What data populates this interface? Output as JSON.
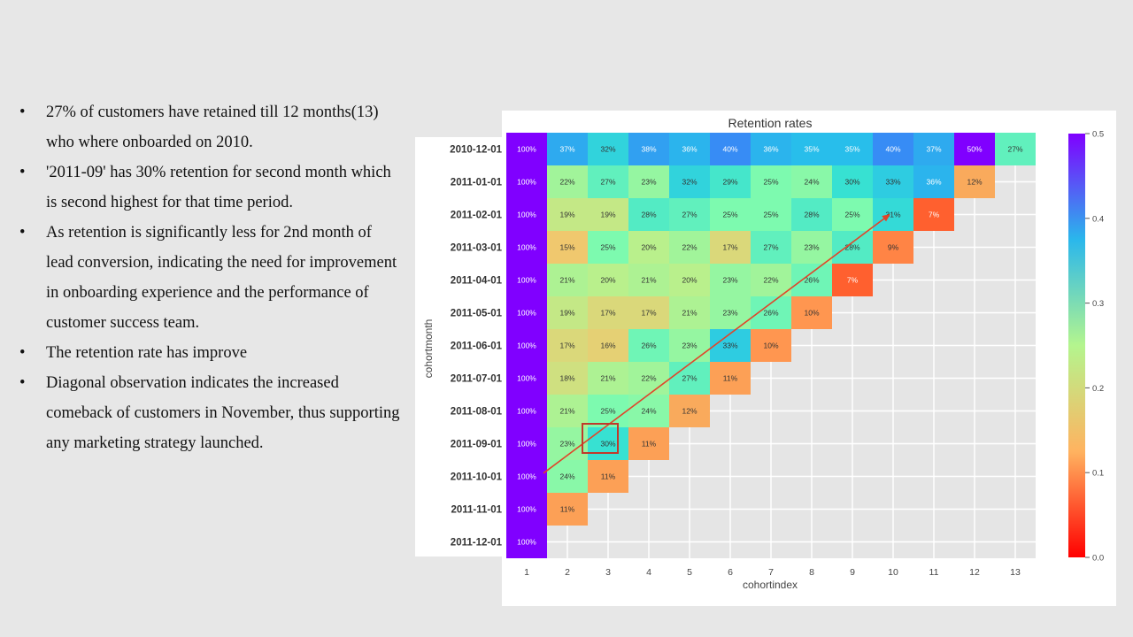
{
  "bullets": [
    "27% of customers have retained till  12 months(13) who where onboarded on 2010.",
    "'2011-09' has 30% retention for second month which is second highest for that time period.",
    "As retention is significantly less for 2nd month of lead conversion, indicating the need for improvement in onboarding experience and the performance of customer success team.",
    "The retention rate has improve",
    "Diagonal observation indicates the increased comeback of customers in November, thus supporting any marketing strategy launched."
  ],
  "bullet_symbol": "•",
  "chart_data": {
    "type": "heatmap",
    "title": "Retention rates",
    "xlabel": "cohortindex",
    "ylabel": "cohortmonth",
    "x": [
      "1",
      "2",
      "3",
      "4",
      "5",
      "6",
      "7",
      "8",
      "9",
      "10",
      "11",
      "12",
      "13"
    ],
    "y": [
      "2010-12-01",
      "2011-01-01",
      "2011-02-01",
      "2011-03-01",
      "2011-04-01",
      "2011-05-01",
      "2011-06-01",
      "2011-07-01",
      "2011-08-01",
      "2011-09-01",
      "2011-10-01",
      "2011-11-01",
      "2011-12-01"
    ],
    "values": [
      [
        1.0,
        0.37,
        0.32,
        0.38,
        0.36,
        0.4,
        0.36,
        0.35,
        0.35,
        0.4,
        0.37,
        0.5,
        0.27
      ],
      [
        1.0,
        0.22,
        0.27,
        0.23,
        0.32,
        0.29,
        0.25,
        0.24,
        0.3,
        0.33,
        0.36,
        0.12
      ],
      [
        1.0,
        0.19,
        0.19,
        0.28,
        0.27,
        0.25,
        0.25,
        0.28,
        0.25,
        0.31,
        0.07
      ],
      [
        1.0,
        0.15,
        0.25,
        0.2,
        0.22,
        0.17,
        0.27,
        0.23,
        0.28,
        0.09
      ],
      [
        1.0,
        0.21,
        0.2,
        0.21,
        0.2,
        0.23,
        0.22,
        0.26,
        0.07
      ],
      [
        1.0,
        0.19,
        0.17,
        0.17,
        0.21,
        0.23,
        0.26,
        0.1
      ],
      [
        1.0,
        0.17,
        0.16,
        0.26,
        0.23,
        0.33,
        0.1
      ],
      [
        1.0,
        0.18,
        0.21,
        0.22,
        0.27,
        0.11
      ],
      [
        1.0,
        0.21,
        0.25,
        0.24,
        0.12
      ],
      [
        1.0,
        0.23,
        0.3,
        0.11
      ],
      [
        1.0,
        0.24,
        0.11
      ],
      [
        1.0,
        0.11
      ],
      [
        1.0
      ]
    ],
    "colorbar": {
      "range": [
        0.0,
        0.5
      ],
      "ticks": [
        "0.0",
        "0.1",
        "0.2",
        "0.3",
        "0.4",
        "0.5"
      ],
      "colormap": "rainbow_r"
    },
    "annotations": [
      {
        "type": "arrow",
        "from": {
          "row": "2011-10-01",
          "col": "1"
        },
        "to": {
          "row": "2011-02-01",
          "col": "10"
        },
        "color": "#e0452a"
      },
      {
        "type": "box",
        "row": "2011-09-01",
        "col": "3",
        "color": "#c0392b"
      }
    ]
  }
}
